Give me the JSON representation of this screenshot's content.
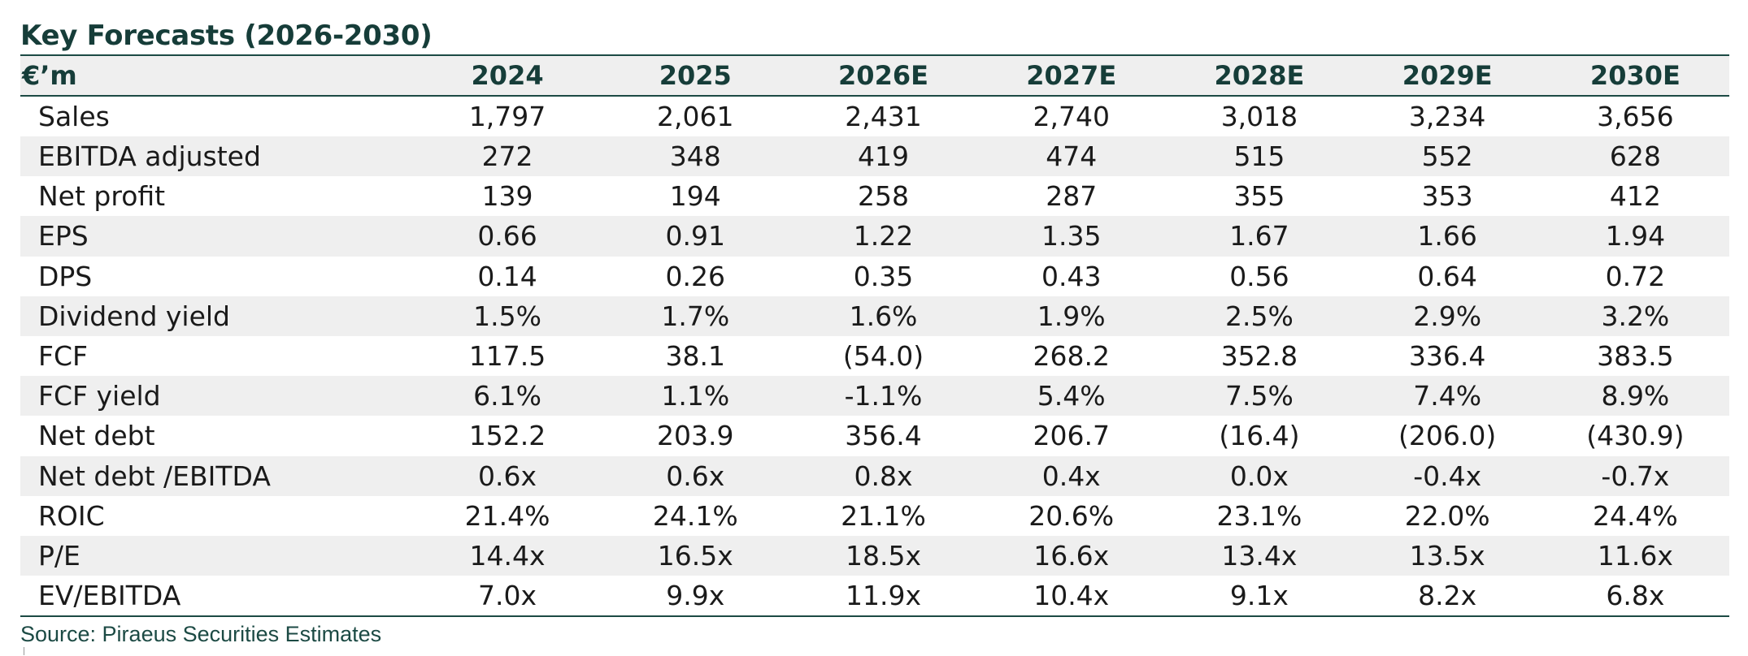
{
  "title": "Key Forecasts (2026-2030)",
  "table": {
    "unit_header": "€’m",
    "columns": [
      "2024",
      "2025",
      "2026E",
      "2027E",
      "2028E",
      "2029E",
      "2030E"
    ],
    "rows": [
      {
        "label": "Sales",
        "values": [
          "1,797",
          "2,061",
          "2,431",
          "2,740",
          "3,018",
          "3,234",
          "3,656"
        ]
      },
      {
        "label": "EBITDA adjusted",
        "values": [
          "272",
          "348",
          "419",
          "474",
          "515",
          "552",
          "628"
        ]
      },
      {
        "label": "Net profit",
        "values": [
          "139",
          "194",
          "258",
          "287",
          "355",
          "353",
          "412"
        ]
      },
      {
        "label": "EPS",
        "values": [
          "0.66",
          "0.91",
          "1.22",
          "1.35",
          "1.67",
          "1.66",
          "1.94"
        ]
      },
      {
        "label": "DPS",
        "values": [
          "0.14",
          "0.26",
          "0.35",
          "0.43",
          "0.56",
          "0.64",
          "0.72"
        ]
      },
      {
        "label": "Dividend yield",
        "values": [
          "1.5%",
          "1.7%",
          "1.6%",
          "1.9%",
          "2.5%",
          "2.9%",
          "3.2%"
        ]
      },
      {
        "label": "FCF",
        "values": [
          "117.5",
          "38.1",
          "(54.0)",
          "268.2",
          "352.8",
          "336.4",
          "383.5"
        ]
      },
      {
        "label": "FCF yield",
        "values": [
          "6.1%",
          "1.1%",
          "-1.1%",
          "5.4%",
          "7.5%",
          "7.4%",
          "8.9%"
        ]
      },
      {
        "label": "Net debt",
        "values": [
          "152.2",
          "203.9",
          "356.4",
          "206.7",
          "(16.4)",
          "(206.0)",
          "(430.9)"
        ]
      },
      {
        "label": "Net debt /EBITDA",
        "values": [
          "0.6x",
          "0.6x",
          "0.8x",
          "0.4x",
          "0.0x",
          "-0.4x",
          "-0.7x"
        ]
      },
      {
        "label": "ROIC",
        "values": [
          "21.4%",
          "24.1%",
          "21.1%",
          "20.6%",
          "23.1%",
          "22.0%",
          "24.4%"
        ]
      },
      {
        "label": "P/E",
        "values": [
          "14.4x",
          "16.5x",
          "18.5x",
          "16.6x",
          "13.4x",
          "13.5x",
          "11.6x"
        ]
      },
      {
        "label": "EV/EBITDA",
        "values": [
          "7.0x",
          "9.9x",
          "11.9x",
          "10.4x",
          "9.1x",
          "8.2x",
          "6.8x"
        ]
      }
    ]
  },
  "source": "Source: Piraeus Securities Estimates"
}
